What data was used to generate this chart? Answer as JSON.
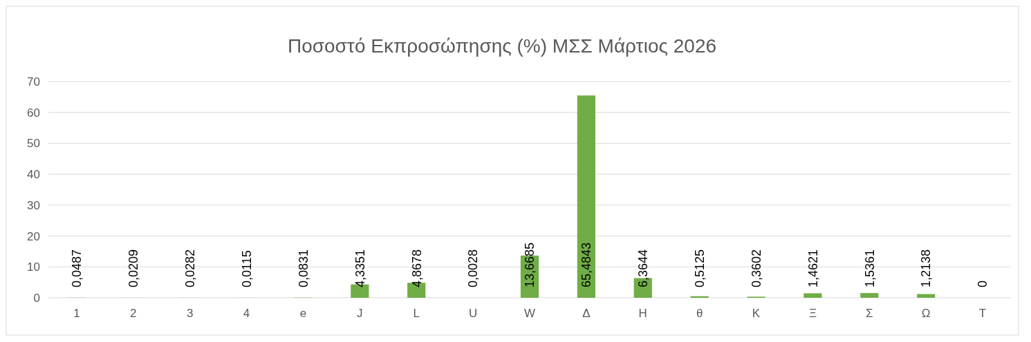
{
  "chart_data": {
    "type": "bar",
    "title": "Ποσοστό Εκπροσώπησης (%) ΜΣΣ Μάρτιος 2026",
    "categories": [
      "1",
      "2",
      "3",
      "4",
      "e",
      "J",
      "L",
      "U",
      "W",
      "Δ",
      "Η",
      "θ",
      "Κ",
      "Ξ",
      "Σ",
      "Ω",
      "Τ"
    ],
    "values": [
      0.0487,
      0.0209,
      0.0282,
      0.0115,
      0.0831,
      4.3351,
      4.8678,
      0.0028,
      13.6685,
      65.4843,
      6.3644,
      0.5125,
      0.3602,
      1.4621,
      1.5361,
      1.2138,
      0
    ],
    "value_labels": [
      "0,0487",
      "0,0209",
      "0,0282",
      "0,0115",
      "0,0831",
      "4,3351",
      "4,8678",
      "0,0028",
      "13,6685",
      "65,4843",
      "6,3644",
      "0,5125",
      "0,3602",
      "1,4621",
      "1,5361",
      "1,2138",
      "0"
    ],
    "color": "#70ad47",
    "ylim": [
      0,
      70
    ],
    "yticks": [
      0,
      10,
      20,
      30,
      40,
      50,
      60,
      70
    ],
    "grid": "y"
  }
}
